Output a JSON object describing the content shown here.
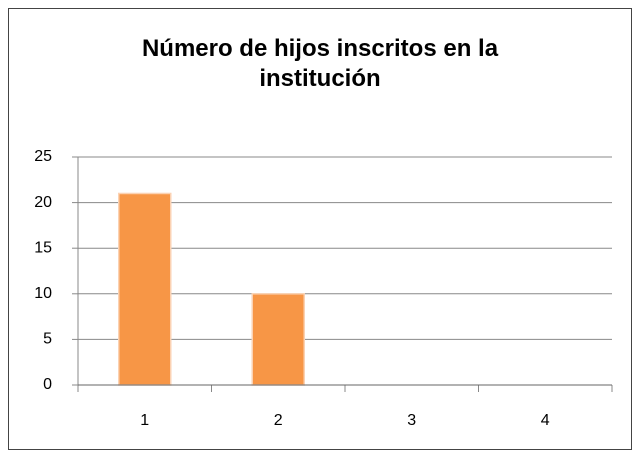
{
  "chart_data": {
    "type": "bar",
    "title": "Número de hijos inscritos en la institución",
    "categories": [
      "1",
      "2",
      "3",
      "4"
    ],
    "values": [
      21,
      10,
      0,
      0
    ],
    "color": "#f79646",
    "ylim": [
      0,
      25
    ],
    "yticks": [
      0,
      5,
      10,
      15,
      20,
      25
    ],
    "grid": true
  }
}
